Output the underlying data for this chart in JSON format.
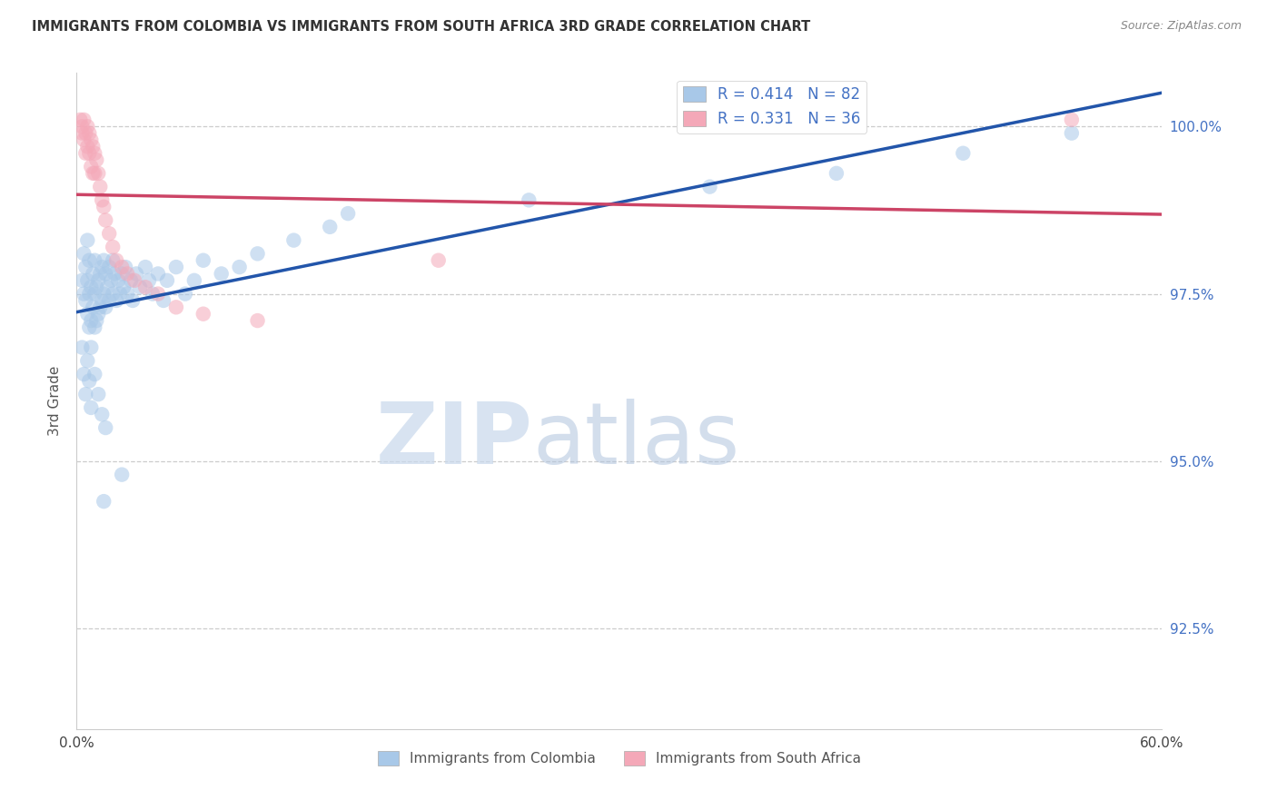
{
  "title": "IMMIGRANTS FROM COLOMBIA VS IMMIGRANTS FROM SOUTH AFRICA 3RD GRADE CORRELATION CHART",
  "source": "Source: ZipAtlas.com",
  "ylabel": "3rd Grade",
  "right_ytick_labels": [
    "100.0%",
    "97.5%",
    "95.0%",
    "92.5%"
  ],
  "right_ytick_values": [
    1.0,
    0.975,
    0.95,
    0.925
  ],
  "xlim": [
    0.0,
    0.6
  ],
  "ylim": [
    0.91,
    1.008
  ],
  "xtick_labels": [
    "0.0%",
    "60.0%"
  ],
  "xtick_values": [
    0.0,
    0.6
  ],
  "legend_blue_label": "R = 0.414   N = 82",
  "legend_pink_label": "R = 0.331   N = 36",
  "legend_bottom_blue": "Immigrants from Colombia",
  "legend_bottom_pink": "Immigrants from South Africa",
  "colombia_color": "#a8c8e8",
  "south_africa_color": "#f4a8b8",
  "colombia_line_color": "#2255aa",
  "south_africa_line_color": "#cc4466",
  "watermark_text": "ZIPatlas",
  "watermark_color": "#ddeeff",
  "grid_color": "#cccccc",
  "background_color": "#ffffff",
  "right_axis_color": "#4472c4",
  "colombia_x": [
    0.003,
    0.004,
    0.004,
    0.005,
    0.005,
    0.006,
    0.006,
    0.006,
    0.007,
    0.007,
    0.007,
    0.008,
    0.008,
    0.008,
    0.009,
    0.009,
    0.01,
    0.01,
    0.01,
    0.011,
    0.011,
    0.012,
    0.012,
    0.013,
    0.013,
    0.014,
    0.014,
    0.015,
    0.015,
    0.016,
    0.016,
    0.017,
    0.018,
    0.018,
    0.019,
    0.02,
    0.02,
    0.021,
    0.022,
    0.023,
    0.024,
    0.025,
    0.026,
    0.027,
    0.028,
    0.03,
    0.031,
    0.033,
    0.035,
    0.038,
    0.04,
    0.042,
    0.045,
    0.048,
    0.05,
    0.055,
    0.06,
    0.065,
    0.07,
    0.08,
    0.09,
    0.1,
    0.12,
    0.14,
    0.003,
    0.004,
    0.005,
    0.006,
    0.007,
    0.008,
    0.01,
    0.012,
    0.014,
    0.016,
    0.15,
    0.25,
    0.35,
    0.42,
    0.49,
    0.55,
    0.015,
    0.025
  ],
  "colombia_y": [
    0.977,
    0.981,
    0.975,
    0.979,
    0.974,
    0.983,
    0.977,
    0.972,
    0.98,
    0.975,
    0.97,
    0.976,
    0.971,
    0.967,
    0.978,
    0.973,
    0.98,
    0.975,
    0.97,
    0.976,
    0.971,
    0.977,
    0.972,
    0.978,
    0.973,
    0.979,
    0.974,
    0.98,
    0.975,
    0.978,
    0.973,
    0.976,
    0.979,
    0.974,
    0.977,
    0.98,
    0.975,
    0.978,
    0.974,
    0.977,
    0.975,
    0.978,
    0.976,
    0.979,
    0.975,
    0.977,
    0.974,
    0.978,
    0.976,
    0.979,
    0.977,
    0.975,
    0.978,
    0.974,
    0.977,
    0.979,
    0.975,
    0.977,
    0.98,
    0.978,
    0.979,
    0.981,
    0.983,
    0.985,
    0.967,
    0.963,
    0.96,
    0.965,
    0.962,
    0.958,
    0.963,
    0.96,
    0.957,
    0.955,
    0.987,
    0.989,
    0.991,
    0.993,
    0.996,
    0.999,
    0.944,
    0.948
  ],
  "south_africa_x": [
    0.002,
    0.003,
    0.003,
    0.004,
    0.004,
    0.005,
    0.005,
    0.006,
    0.006,
    0.007,
    0.007,
    0.008,
    0.008,
    0.009,
    0.009,
    0.01,
    0.01,
    0.011,
    0.012,
    0.013,
    0.014,
    0.015,
    0.016,
    0.018,
    0.02,
    0.022,
    0.025,
    0.028,
    0.032,
    0.038,
    0.045,
    0.055,
    0.07,
    0.1,
    0.2,
    0.55
  ],
  "south_africa_y": [
    1.001,
    0.999,
    1.0,
    0.998,
    1.001,
    0.999,
    0.996,
    1.0,
    0.997,
    0.999,
    0.996,
    0.998,
    0.994,
    0.997,
    0.993,
    0.996,
    0.993,
    0.995,
    0.993,
    0.991,
    0.989,
    0.988,
    0.986,
    0.984,
    0.982,
    0.98,
    0.979,
    0.978,
    0.977,
    0.976,
    0.975,
    0.973,
    0.972,
    0.971,
    0.98,
    1.001
  ]
}
